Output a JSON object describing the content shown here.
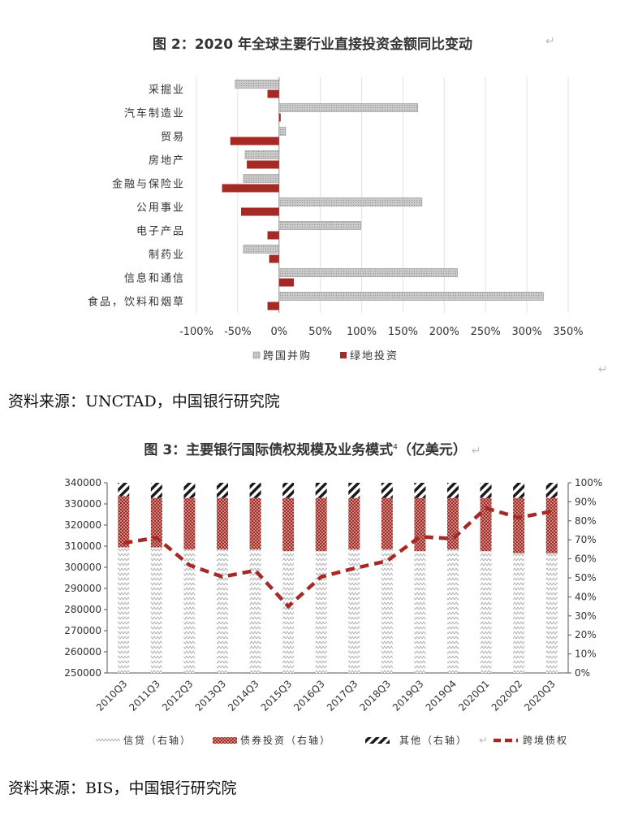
{
  "chart1": {
    "title": "图 2：2020 年全球主要行业直接投资金额同比变动",
    "source": "资料来源：UNCTAD，中国银行研究院",
    "chart_data": {
      "type": "bar",
      "orientation": "horizontal",
      "categories": [
        "采掘业",
        "汽车制造业",
        "贸易",
        "房地产",
        "金融与保险业",
        "公用事业",
        "电子产品",
        "制药业",
        "信息和通信",
        "食品，饮料和烟草"
      ],
      "series": [
        {
          "name": "跨国并购",
          "values": [
            -53,
            168,
            8,
            -41,
            -43,
            173,
            99,
            -43,
            216,
            320
          ]
        },
        {
          "name": "绿地投资",
          "values": [
            -14,
            2,
            -59,
            -39,
            -69,
            -46,
            -14,
            -12,
            18,
            -14
          ]
        }
      ],
      "x_ticks": [
        "-100%",
        "-50%",
        "0%",
        "50%",
        "100%",
        "150%",
        "200%",
        "250%",
        "300%",
        "350%"
      ],
      "xlim": [
        -100,
        350
      ],
      "grid": "vertical",
      "legend_position": "bottom",
      "colors": {
        "跨国并购": "#bdbdbd",
        "绿地投资": "#a52a25"
      }
    }
  },
  "chart2": {
    "title": "图 3：主要银行国际债权规模及业务模式",
    "title_sup": "4",
    "title_unit": "（亿美元）",
    "source": "资料来源：BIS，中国银行研究院",
    "chart_data": {
      "type": "bar",
      "stacked": true,
      "categories": [
        "2010Q3",
        "2011Q3",
        "2012Q3",
        "2013Q3",
        "2014Q3",
        "2015Q3",
        "2016Q3",
        "2017Q3",
        "2018Q3",
        "2019Q3",
        "2019Q4",
        "2020Q1",
        "2020Q2",
        "2020Q3"
      ],
      "series": [
        {
          "name": "信贷（右轴）",
          "axis": "right",
          "values": [
            0.66,
            0.66,
            0.65,
            0.65,
            0.65,
            0.64,
            0.64,
            0.65,
            0.65,
            0.64,
            0.65,
            0.64,
            0.63,
            0.63
          ]
        },
        {
          "name": "债券投资（右轴）",
          "axis": "right",
          "values": [
            0.27,
            0.26,
            0.27,
            0.27,
            0.27,
            0.28,
            0.28,
            0.27,
            0.27,
            0.28,
            0.27,
            0.28,
            0.29,
            0.29
          ]
        },
        {
          "name": "其他（右轴）",
          "axis": "right",
          "values": [
            0.07,
            0.08,
            0.08,
            0.08,
            0.08,
            0.08,
            0.08,
            0.08,
            0.08,
            0.08,
            0.08,
            0.08,
            0.08,
            0.08
          ]
        },
        {
          "name": "跨境债权",
          "type": "line",
          "axis": "left",
          "values": [
            311500,
            314000,
            301000,
            295500,
            298500,
            281500,
            295500,
            299500,
            303000,
            314500,
            313500,
            328000,
            323500,
            326500
          ]
        }
      ],
      "left_axis": {
        "range": [
          250000,
          340000
        ],
        "ticks": [
          "250000",
          "260000",
          "270000",
          "280000",
          "290000",
          "300000",
          "310000",
          "320000",
          "330000",
          "340000"
        ]
      },
      "right_axis": {
        "range": [
          0,
          1
        ],
        "ticks": [
          "0%",
          "10%",
          "20%",
          "30%",
          "40%",
          "50%",
          "60%",
          "70%",
          "80%",
          "90%",
          "100%"
        ]
      },
      "legend_position": "bottom",
      "colors": {
        "债券投资（右轴）": "#a52a25",
        "跨境债权": "#a52a25",
        "信贷（右轴）": "#cfcfcf",
        "其他（右轴）": "#222222"
      }
    }
  }
}
